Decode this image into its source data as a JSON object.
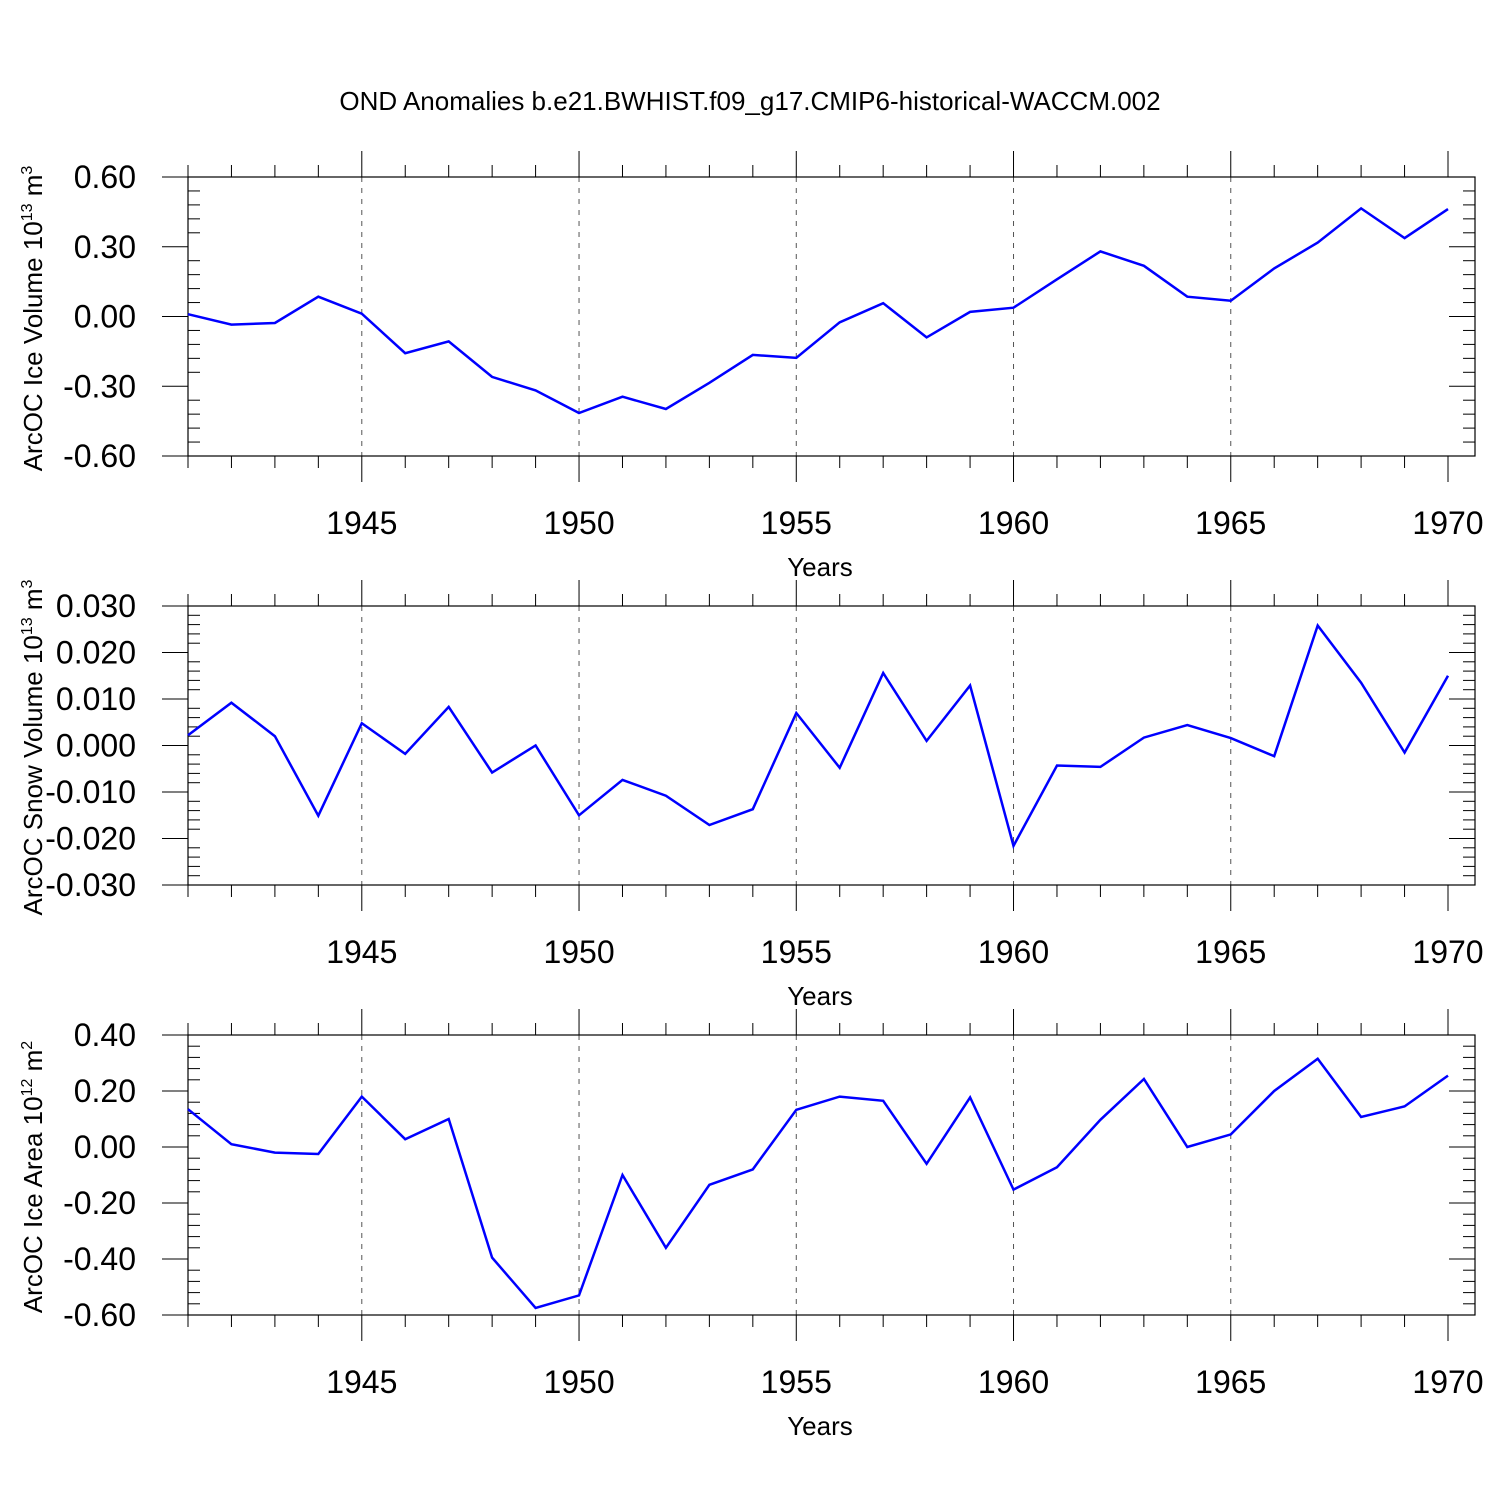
{
  "title": "OND Anomalies b.e21.BWHIST.f09_g17.CMIP6-historical-WACCM.002",
  "style": {
    "line_color": "#0000ff",
    "axis_color": "#000000",
    "grid_color": "#555555"
  },
  "chart_data": [
    {
      "type": "line",
      "ylabel": "ArcOC Ice Volume 10",
      "ylabel_exp": "13",
      "ylabel_unit": " m",
      "ylabel_unit_exp": "3",
      "xlabel": "Years",
      "xlim": [
        1941,
        1970
      ],
      "ylim": [
        -0.6,
        0.6
      ],
      "yticks": [
        -0.6,
        -0.3,
        0.0,
        0.3,
        0.6
      ],
      "ytick_labels": [
        "-0.60",
        "-0.30",
        "0.00",
        "0.30",
        "0.60"
      ],
      "xticks": [
        1945,
        1950,
        1955,
        1960,
        1965,
        1970
      ],
      "xtick_labels": [
        "1945",
        "1950",
        "1955",
        "1960",
        "1965",
        "1970"
      ],
      "x": [
        1941,
        1942,
        1943,
        1944,
        1945,
        1946,
        1947,
        1948,
        1949,
        1950,
        1951,
        1952,
        1953,
        1954,
        1955,
        1956,
        1957,
        1958,
        1959,
        1960,
        1961,
        1962,
        1963,
        1964,
        1965,
        1966,
        1967,
        1968,
        1969,
        1970
      ],
      "values": [
        0.01,
        -0.035,
        -0.028,
        0.085,
        0.012,
        -0.158,
        -0.107,
        -0.26,
        -0.318,
        -0.415,
        -0.345,
        -0.398,
        -0.285,
        -0.165,
        -0.178,
        -0.025,
        0.057,
        -0.09,
        0.02,
        0.038,
        0.16,
        0.28,
        0.218,
        0.085,
        0.068,
        0.207,
        0.318,
        0.465,
        0.337,
        0.462
      ]
    },
    {
      "type": "line",
      "ylabel": "ArcOC Snow Volume 10",
      "ylabel_exp": "13",
      "ylabel_unit": " m",
      "ylabel_unit_exp": "3",
      "xlabel": "Years",
      "xlim": [
        1941,
        1970
      ],
      "ylim": [
        -0.03,
        0.03
      ],
      "yticks": [
        -0.03,
        -0.02,
        -0.01,
        0.0,
        0.01,
        0.02,
        0.03
      ],
      "ytick_labels": [
        "-0.030",
        "-0.020",
        "-0.010",
        "0.000",
        "0.010",
        "0.020",
        "0.030"
      ],
      "xticks": [
        1945,
        1950,
        1955,
        1960,
        1965,
        1970
      ],
      "xtick_labels": [
        "1945",
        "1950",
        "1955",
        "1960",
        "1965",
        "1970"
      ],
      "x": [
        1941,
        1942,
        1943,
        1944,
        1945,
        1946,
        1947,
        1948,
        1949,
        1950,
        1951,
        1952,
        1953,
        1954,
        1955,
        1956,
        1957,
        1958,
        1959,
        1960,
        1961,
        1962,
        1963,
        1964,
        1965,
        1966,
        1967,
        1968,
        1969,
        1970
      ],
      "values": [
        0.0022,
        0.0092,
        0.002,
        -0.0151,
        0.0048,
        -0.0018,
        0.0083,
        -0.0058,
        0.0,
        -0.015,
        -0.0074,
        -0.0108,
        -0.0171,
        -0.0137,
        0.007,
        -0.0048,
        0.0156,
        0.001,
        0.0129,
        -0.0216,
        -0.0043,
        -0.0046,
        0.0017,
        0.0044,
        0.0016,
        -0.0023,
        0.0258,
        0.0135,
        -0.0015,
        0.015
      ]
    },
    {
      "type": "line",
      "ylabel": "ArcOC Ice Area 10",
      "ylabel_exp": "12",
      "ylabel_unit": " m",
      "ylabel_unit_exp": "2",
      "xlabel": "Years",
      "xlim": [
        1941,
        1970
      ],
      "ylim": [
        -0.6,
        0.4
      ],
      "yticks": [
        -0.6,
        -0.4,
        -0.2,
        0.0,
        0.2,
        0.4
      ],
      "ytick_labels": [
        "-0.60",
        "-0.40",
        "-0.20",
        "0.00",
        "0.20",
        "0.40"
      ],
      "xticks": [
        1945,
        1950,
        1955,
        1960,
        1965,
        1970
      ],
      "xtick_labels": [
        "1945",
        "1950",
        "1955",
        "1960",
        "1965",
        "1970"
      ],
      "x": [
        1941,
        1942,
        1943,
        1944,
        1945,
        1946,
        1947,
        1948,
        1949,
        1950,
        1951,
        1952,
        1953,
        1954,
        1955,
        1956,
        1957,
        1958,
        1959,
        1960,
        1961,
        1962,
        1963,
        1964,
        1965,
        1966,
        1967,
        1968,
        1969,
        1970
      ],
      "values": [
        0.135,
        0.01,
        -0.02,
        -0.025,
        0.18,
        0.028,
        0.1,
        -0.395,
        -0.575,
        -0.53,
        -0.1,
        -0.36,
        -0.135,
        -0.08,
        0.133,
        0.18,
        0.165,
        -0.06,
        0.177,
        -0.152,
        -0.072,
        0.097,
        0.243,
        0.0,
        0.045,
        0.2,
        0.315,
        0.107,
        0.145,
        0.255
      ]
    }
  ]
}
